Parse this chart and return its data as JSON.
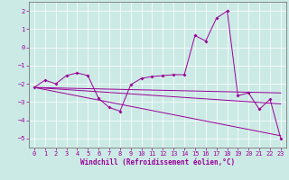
{
  "xlabel": "Windchill (Refroidissement éolien,°C)",
  "background_color": "#cceae5",
  "line_color": "#990099",
  "series": {
    "jagged": [
      [
        0,
        -2.2
      ],
      [
        1,
        -1.8
      ],
      [
        2,
        -2.0
      ],
      [
        3,
        -1.55
      ],
      [
        4,
        -1.4
      ],
      [
        5,
        -1.55
      ],
      [
        6,
        -2.8
      ],
      [
        7,
        -3.3
      ],
      [
        8,
        -3.5
      ],
      [
        9,
        -2.05
      ],
      [
        10,
        -1.7
      ],
      [
        11,
        -1.6
      ],
      [
        12,
        -1.55
      ],
      [
        13,
        -1.5
      ],
      [
        14,
        -1.5
      ],
      [
        15,
        0.65
      ],
      [
        16,
        0.35
      ],
      [
        17,
        1.6
      ],
      [
        18,
        2.0
      ],
      [
        19,
        -2.65
      ],
      [
        20,
        -2.5
      ],
      [
        21,
        -3.4
      ],
      [
        22,
        -2.85
      ],
      [
        23,
        -5.0
      ]
    ],
    "line1": [
      [
        0,
        -2.2
      ],
      [
        23,
        -2.5
      ]
    ],
    "line2": [
      [
        0,
        -2.2
      ],
      [
        23,
        -3.1
      ]
    ],
    "line3": [
      [
        0,
        -2.2
      ],
      [
        23,
        -4.85
      ]
    ]
  },
  "xlim": [
    -0.5,
    23.5
  ],
  "ylim": [
    -5.5,
    2.5
  ],
  "yticks": [
    -5,
    -4,
    -3,
    -2,
    -1,
    0,
    1,
    2
  ],
  "xticks": [
    0,
    1,
    2,
    3,
    4,
    5,
    6,
    7,
    8,
    9,
    10,
    11,
    12,
    13,
    14,
    15,
    16,
    17,
    18,
    19,
    20,
    21,
    22,
    23
  ],
  "tick_fontsize": 5.0,
  "xlabel_fontsize": 5.5
}
